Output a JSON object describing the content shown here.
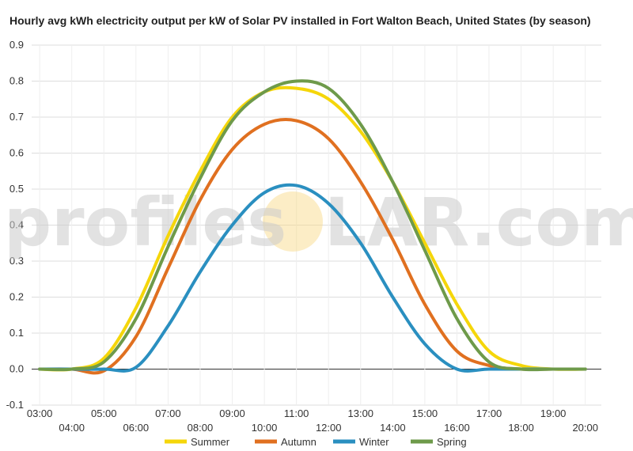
{
  "chart_data": {
    "type": "line",
    "title": "Hourly avg kWh electricity output per kW of Solar PV installed in Fort Walton Beach, United States (by season)",
    "xlabel": "",
    "ylabel": "",
    "ylim": [
      -0.1,
      0.9
    ],
    "yticks": [
      "-0.1",
      "0.0",
      "0.1",
      "0.2",
      "0.3",
      "0.4",
      "0.5",
      "0.6",
      "0.7",
      "0.8",
      "0.9"
    ],
    "xticks": [
      "03:00",
      "04:00",
      "05:00",
      "06:00",
      "07:00",
      "08:00",
      "09:00",
      "10:00",
      "11:00",
      "12:00",
      "13:00",
      "14:00",
      "15:00",
      "16:00",
      "17:00",
      "18:00",
      "19:00",
      "20:00"
    ],
    "x": [
      3,
      4,
      5,
      6,
      7,
      8,
      9,
      10,
      11,
      12,
      13,
      14,
      15,
      16,
      17,
      18,
      19,
      20
    ],
    "grid": true,
    "legend_position": "bottom",
    "series": [
      {
        "name": "Summer",
        "color": "#f5d60a",
        "values": [
          0,
          0,
          0.03,
          0.17,
          0.37,
          0.55,
          0.7,
          0.77,
          0.78,
          0.75,
          0.66,
          0.52,
          0.35,
          0.18,
          0.05,
          0.01,
          0,
          0
        ]
      },
      {
        "name": "Autumn",
        "color": "#e07020",
        "values": [
          0,
          0,
          -0.005,
          0.09,
          0.28,
          0.47,
          0.61,
          0.68,
          0.69,
          0.64,
          0.52,
          0.36,
          0.18,
          0.05,
          0.01,
          0,
          0,
          0
        ]
      },
      {
        "name": "Winter",
        "color": "#2a8fc0",
        "values": [
          0,
          0,
          0,
          0.005,
          0.12,
          0.27,
          0.4,
          0.49,
          0.51,
          0.46,
          0.35,
          0.2,
          0.07,
          0,
          0,
          0,
          0,
          0
        ]
      },
      {
        "name": "Spring",
        "color": "#6e9a4a",
        "values": [
          0,
          0,
          0.02,
          0.14,
          0.34,
          0.53,
          0.69,
          0.77,
          0.8,
          0.78,
          0.68,
          0.52,
          0.33,
          0.14,
          0.02,
          0,
          0,
          0
        ]
      }
    ]
  },
  "watermark": {
    "text_left": "profiles",
    "text_right": "LAR.com",
    "sun_color": "#f8d680"
  }
}
